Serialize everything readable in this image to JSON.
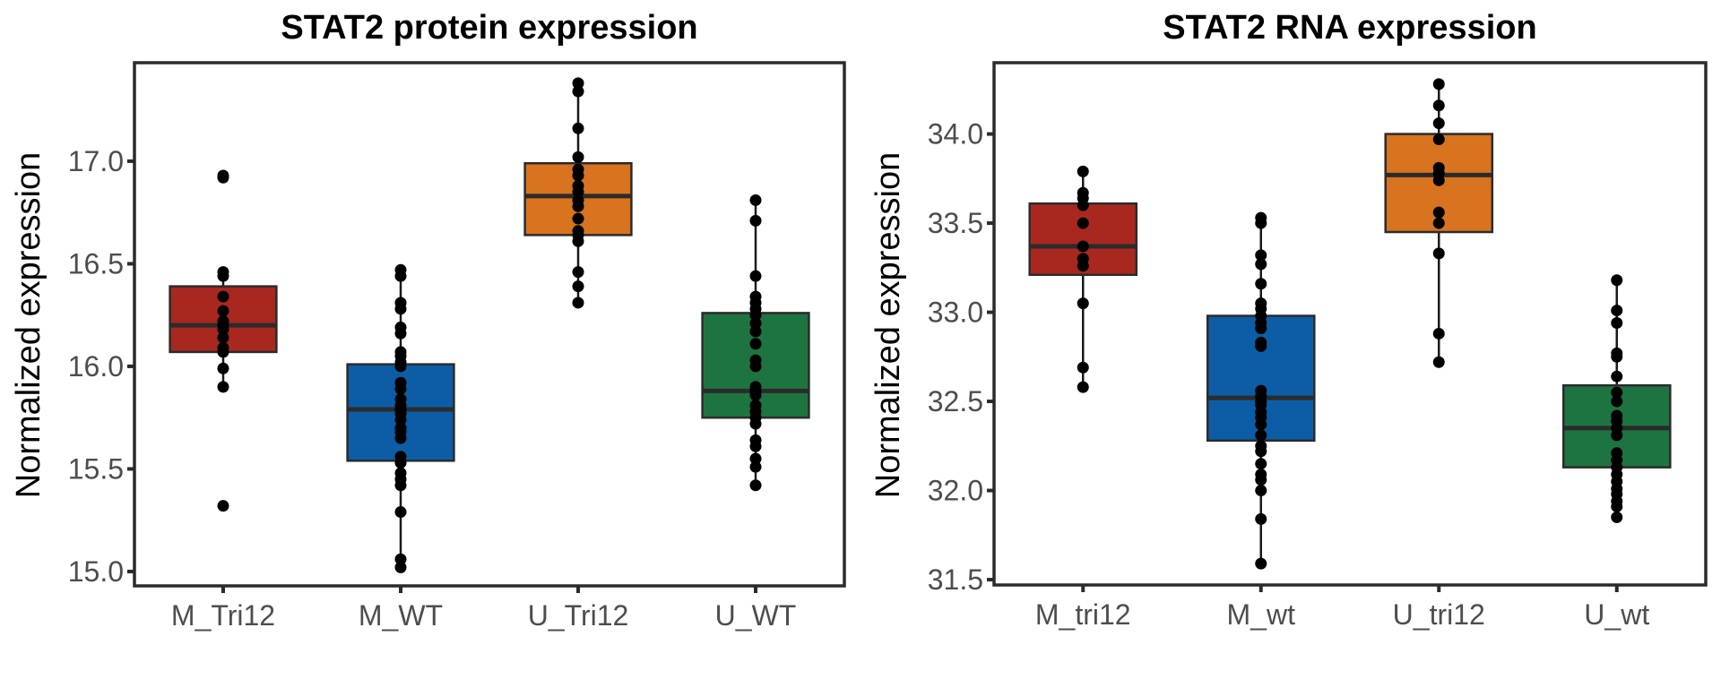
{
  "chart_data": [
    {
      "type": "box",
      "title": "STAT2 protein expression",
      "xlabel": "",
      "ylabel": "Normalized expression",
      "ylim": [
        14.93,
        17.48
      ],
      "yticks": [
        15.0,
        15.5,
        16.0,
        16.5,
        17.0
      ],
      "ytick_labels": [
        "15.0",
        "15.5",
        "16.0",
        "16.5",
        "17.0"
      ],
      "grid": false,
      "legend": "none",
      "categories": [
        "M_Tri12",
        "M_WT",
        "U_Tri12",
        "U_WT"
      ],
      "colors": [
        "#A82820",
        "#0C5DA5",
        "#D8731F",
        "#1E7440"
      ],
      "boxes": [
        {
          "group": "M_Tri12",
          "whisker_low": 15.9,
          "q1": 16.07,
          "median": 16.2,
          "q3": 16.39,
          "whisker_high": 16.46,
          "points": [
            16.93,
            16.92,
            16.46,
            16.44,
            16.34,
            16.27,
            16.22,
            16.2,
            16.18,
            16.14,
            16.09,
            16.07,
            15.99,
            15.9,
            15.32
          ]
        },
        {
          "group": "M_WT",
          "whisker_low": 15.02,
          "q1": 15.54,
          "median": 15.79,
          "q3": 16.01,
          "whisker_high": 16.47,
          "points": [
            16.47,
            16.44,
            16.31,
            16.28,
            16.19,
            16.16,
            16.07,
            16.05,
            16.02,
            16.0,
            15.92,
            15.89,
            15.84,
            15.81,
            15.79,
            15.77,
            15.74,
            15.7,
            15.68,
            15.65,
            15.56,
            15.53,
            15.48,
            15.45,
            15.42,
            15.29,
            15.06,
            15.02
          ]
        },
        {
          "group": "U_Tri12",
          "whisker_low": 16.31,
          "q1": 16.64,
          "median": 16.83,
          "q3": 16.99,
          "whisker_high": 17.38,
          "points": [
            17.38,
            17.34,
            17.16,
            17.02,
            16.96,
            16.93,
            16.88,
            16.85,
            16.81,
            16.78,
            16.72,
            16.66,
            16.64,
            16.61,
            16.46,
            16.39,
            16.31
          ]
        },
        {
          "group": "U_WT",
          "whisker_low": 15.42,
          "q1": 15.75,
          "median": 15.88,
          "q3": 16.26,
          "whisker_high": 16.81,
          "points": [
            16.81,
            16.71,
            16.44,
            16.34,
            16.31,
            16.28,
            16.25,
            16.21,
            16.17,
            16.11,
            16.03,
            16.0,
            15.9,
            15.88,
            15.86,
            15.81,
            15.78,
            15.75,
            15.72,
            15.64,
            15.61,
            15.55,
            15.51,
            15.42
          ]
        }
      ]
    },
    {
      "type": "box",
      "title": "STAT2 RNA expression",
      "xlabel": "",
      "ylabel": "Normalized expression",
      "ylim": [
        31.47,
        34.4
      ],
      "yticks": [
        31.5,
        32.0,
        32.5,
        33.0,
        33.5,
        34.0
      ],
      "ytick_labels": [
        "31.5",
        "32.0",
        "32.5",
        "33.0",
        "33.5",
        "34.0"
      ],
      "grid": false,
      "legend": "none",
      "categories": [
        "M_tri12",
        "M_wt",
        "U_tri12",
        "U_wt"
      ],
      "colors": [
        "#A82820",
        "#0C5DA5",
        "#D8731F",
        "#1E7440"
      ],
      "boxes": [
        {
          "group": "M_tri12",
          "whisker_low": 32.58,
          "q1": 33.21,
          "median": 33.37,
          "q3": 33.61,
          "whisker_high": 33.79,
          "points": [
            33.79,
            33.67,
            33.64,
            33.6,
            33.5,
            33.37,
            33.3,
            33.26,
            33.05,
            32.69,
            32.58
          ]
        },
        {
          "group": "M_wt",
          "whisker_low": 31.59,
          "q1": 32.28,
          "median": 32.52,
          "q3": 32.98,
          "whisker_high": 33.53,
          "points": [
            33.53,
            33.5,
            33.32,
            33.27,
            33.16,
            33.05,
            33.02,
            32.98,
            32.94,
            32.91,
            32.83,
            32.81,
            32.56,
            32.53,
            32.5,
            32.48,
            32.44,
            32.41,
            32.37,
            32.31,
            32.25,
            32.22,
            32.15,
            32.09,
            32.06,
            32.0,
            31.84,
            31.59
          ]
        },
        {
          "group": "U_tri12",
          "whisker_low": 32.72,
          "q1": 33.45,
          "median": 33.77,
          "q3": 34.0,
          "whisker_high": 34.28,
          "points": [
            34.28,
            34.16,
            34.06,
            33.97,
            33.81,
            33.78,
            33.74,
            33.56,
            33.5,
            33.33,
            32.88,
            32.72
          ]
        },
        {
          "group": "U_wt",
          "whisker_low": 31.85,
          "q1": 32.13,
          "median": 32.35,
          "q3": 32.59,
          "whisker_high": 33.18,
          "points": [
            33.18,
            33.01,
            32.94,
            32.77,
            32.75,
            32.64,
            32.55,
            32.5,
            32.42,
            32.39,
            32.35,
            32.31,
            32.21,
            32.17,
            32.13,
            32.09,
            32.05,
            32.01,
            31.98,
            31.94,
            31.91,
            31.85
          ]
        }
      ]
    }
  ]
}
